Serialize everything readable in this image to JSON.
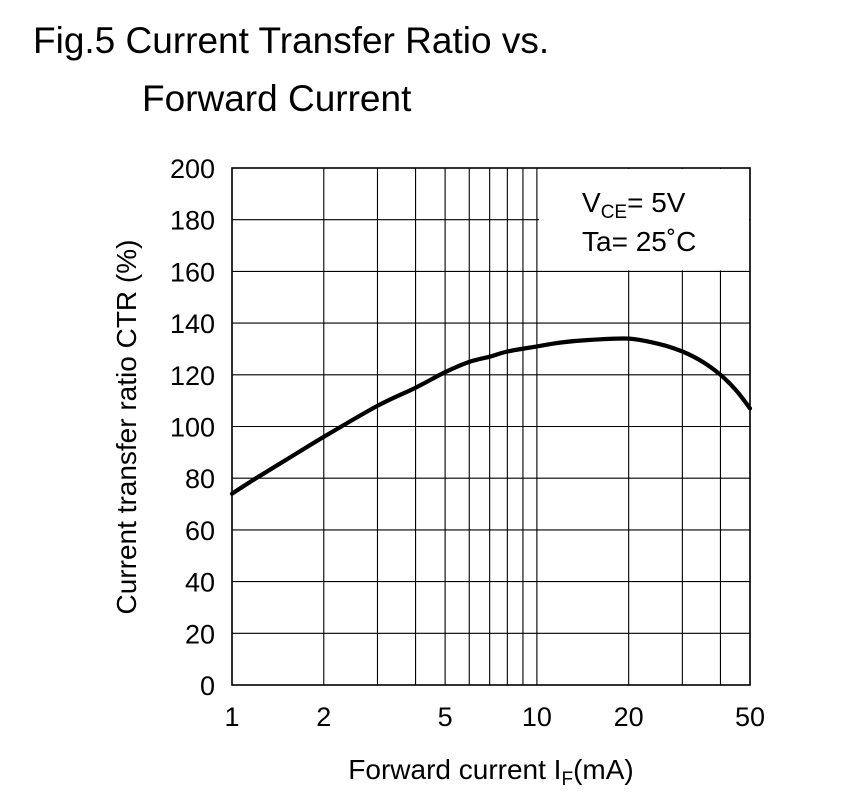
{
  "title": {
    "line1": "Fig.5 Current Transfer Ratio vs.",
    "line2": "Forward Current"
  },
  "chart_data": {
    "type": "line",
    "xscale": "log",
    "xlim": [
      1,
      50
    ],
    "ylim": [
      0,
      200
    ],
    "xlabel": {
      "main": "Forward current I",
      "sub": "F",
      "suffix": "(mA)"
    },
    "ylabel": "Current transfer ratio CTR (%)",
    "x_ticks": [
      1,
      2,
      5,
      10,
      20,
      50
    ],
    "x_tick_labels": [
      "1",
      "2",
      "5",
      "10",
      "20",
      "50"
    ],
    "y_ticks": [
      0,
      20,
      40,
      60,
      80,
      100,
      120,
      140,
      160,
      180,
      200
    ],
    "y_tick_labels": [
      "0",
      "20",
      "40",
      "60",
      "80",
      "100",
      "120",
      "140",
      "160",
      "180",
      "200"
    ],
    "x_minor_grid": [
      3,
      4,
      6,
      7,
      8,
      9,
      30,
      40
    ],
    "grid": true,
    "annotations": {
      "vce": {
        "prefix": "V",
        "sub": "CE",
        "suffix": "= 5V"
      },
      "ta": "Ta= 25˚C"
    },
    "series": [
      {
        "x": [
          1,
          1.2,
          1.5,
          2,
          3,
          4,
          5,
          6,
          7,
          8,
          10,
          12,
          15,
          20,
          25,
          30,
          35,
          40,
          45,
          50
        ],
        "y": [
          74,
          80,
          87,
          96,
          108,
          115,
          121,
          125,
          127,
          129,
          131,
          132.5,
          133.5,
          134,
          132,
          129,
          125,
          120,
          114,
          107
        ],
        "color": "#000000"
      }
    ]
  }
}
